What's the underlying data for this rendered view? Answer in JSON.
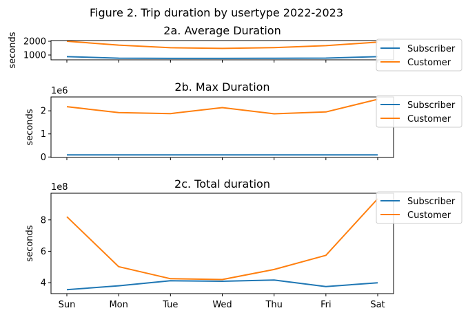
{
  "figure_title": "Figure 2. Trip duration by usertype 2022-2023",
  "colors": {
    "subscriber": "#1f77b4",
    "customer": "#ff7f0e"
  },
  "chart_data": [
    {
      "type": "line",
      "title": "2a. Average Duration",
      "xlabel": "",
      "ylabel": "seconds",
      "categories": [
        "Sun",
        "Mon",
        "Tue",
        "Wed",
        "Thu",
        "Fri",
        "Sat"
      ],
      "series": [
        {
          "name": "Subscriber",
          "values": [
            880,
            770,
            755,
            755,
            765,
            775,
            880
          ]
        },
        {
          "name": "Customer",
          "values": [
            2000,
            1720,
            1530,
            1480,
            1540,
            1680,
            1940
          ]
        }
      ],
      "ylim": [
        650,
        2050
      ],
      "yticks": [
        1000,
        2000
      ],
      "ytick_labels": [
        "1000",
        "2000"
      ],
      "offset_label": "",
      "show_xticklabels": false,
      "legend": "upper-right-outside",
      "grid": false
    },
    {
      "type": "line",
      "title": "2b. Max Duration",
      "xlabel": "",
      "ylabel": "seconds",
      "categories": [
        "Sun",
        "Mon",
        "Tue",
        "Wed",
        "Thu",
        "Fri",
        "Sat"
      ],
      "series": [
        {
          "name": "Subscriber",
          "values": [
            90000,
            90000,
            90000,
            90000,
            90000,
            90000,
            90000
          ]
        },
        {
          "name": "Customer",
          "values": [
            2180000,
            1920000,
            1880000,
            2140000,
            1870000,
            1950000,
            2500000
          ]
        }
      ],
      "ylim": [
        -20000,
        2600000
      ],
      "yticks": [
        0,
        1000000,
        2000000
      ],
      "ytick_labels": [
        "0",
        "1",
        "2"
      ],
      "offset_label": "1e6",
      "show_xticklabels": false,
      "legend": "upper-right-outside",
      "grid": false
    },
    {
      "type": "line",
      "title": "2c. Total duration",
      "xlabel": "",
      "ylabel": "seconds",
      "categories": [
        "Sun",
        "Mon",
        "Tue",
        "Wed",
        "Thu",
        "Fri",
        "Sat"
      ],
      "series": [
        {
          "name": "Subscriber",
          "values": [
            355000000,
            380000000,
            412000000,
            409000000,
            417000000,
            375000000,
            399000000
          ]
        },
        {
          "name": "Customer",
          "values": [
            820000000,
            502000000,
            425000000,
            420000000,
            484000000,
            574000000,
            935000000
          ]
        }
      ],
      "ylim": [
        330000000,
        970000000
      ],
      "yticks": [
        400000000,
        600000000,
        800000000
      ],
      "ytick_labels": [
        "4",
        "6",
        "8"
      ],
      "offset_label": "1e8",
      "show_xticklabels": true,
      "legend": "upper-right-outside",
      "grid": false
    }
  ]
}
